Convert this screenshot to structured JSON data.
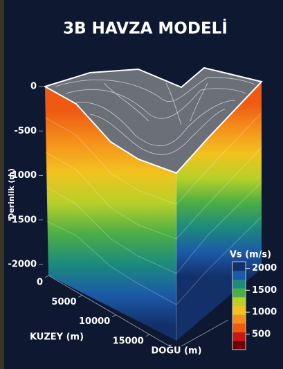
{
  "chart_data": {
    "type": "surface3d",
    "title": "3B HAVZA MODELİ",
    "zlabel": "Derinlik (m)",
    "zlim": [
      0,
      -2000
    ],
    "zticks": [
      0,
      -500,
      -1000,
      -1500,
      -2000
    ],
    "xlabel": "KUZEY (m)",
    "xlim": [
      0,
      18000
    ],
    "xticks": [
      0,
      5000,
      10000,
      15000
    ],
    "ylabel": "DOĞU (m)",
    "colorbar": {
      "title": "Vs (m/s)",
      "lim": [
        150,
        2150
      ],
      "ticks": [
        2000,
        1500,
        1000,
        500
      ],
      "colors": [
        "#6e0008",
        "#c81812",
        "#ee5a12",
        "#f5901c",
        "#f2c21e",
        "#b8d028",
        "#4cae46",
        "#1c8a7e",
        "#1c5aa8",
        "#13306a"
      ]
    }
  }
}
